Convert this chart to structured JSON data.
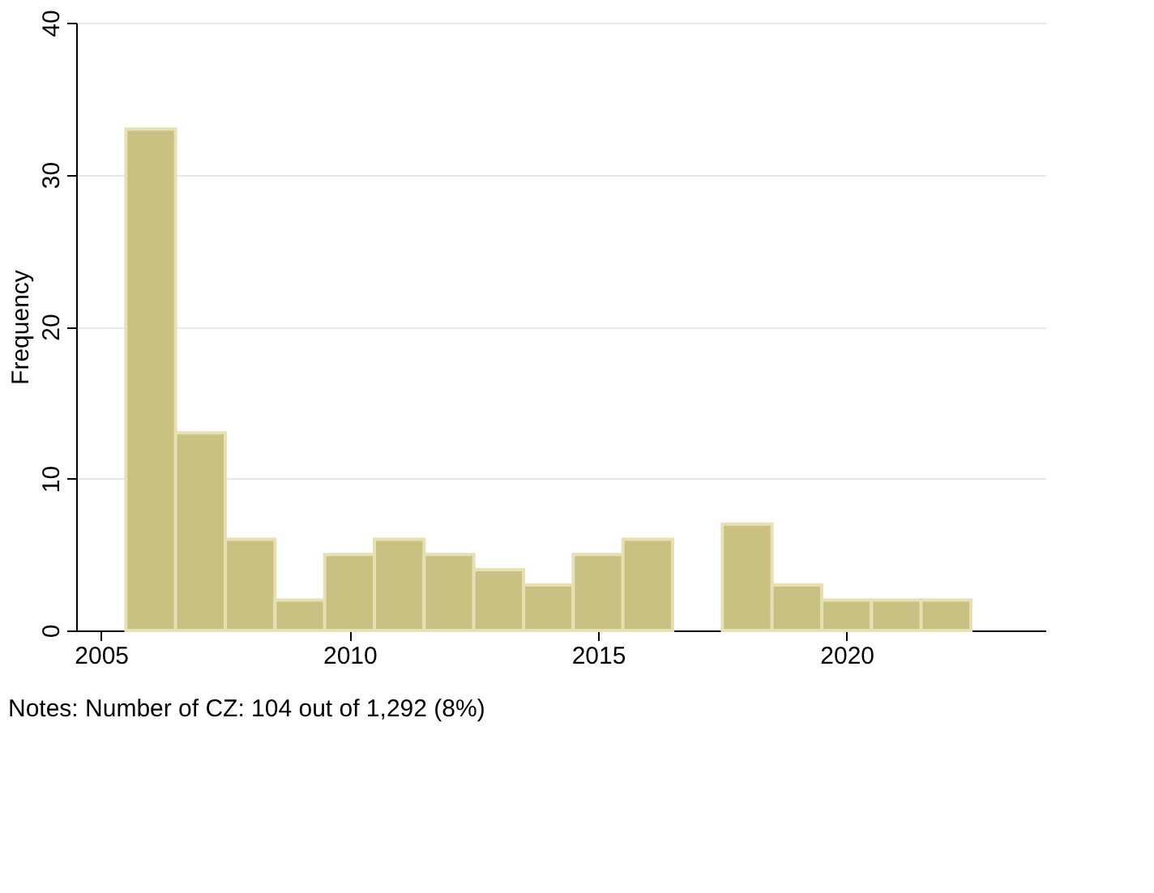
{
  "chart_data": {
    "type": "histogram",
    "bins": [
      2005.5,
      2006.5,
      2007.5,
      2008.5,
      2009.5,
      2010.5,
      2011.5,
      2012.5,
      2013.5,
      2014.5,
      2015.5,
      2016.5,
      2017.5,
      2018.5,
      2019.5,
      2020.5,
      2021.5,
      2022.5
    ],
    "values": [
      33,
      13,
      6,
      2,
      5,
      6,
      5,
      4,
      3,
      5,
      6,
      0,
      7,
      3,
      2,
      2,
      2
    ],
    "color": "#c9c182",
    "ylabel": "Frequency",
    "xlim": [
      2004.5,
      2024
    ],
    "xticks": [
      2005,
      2010,
      2015,
      2020
    ],
    "ylim": [
      0,
      40
    ],
    "yticks": [
      0,
      10,
      20,
      30,
      40
    ],
    "grid": "y",
    "annotations": [
      "Notes: Number of CZ: 104 out of 1,292 (8%)"
    ]
  }
}
